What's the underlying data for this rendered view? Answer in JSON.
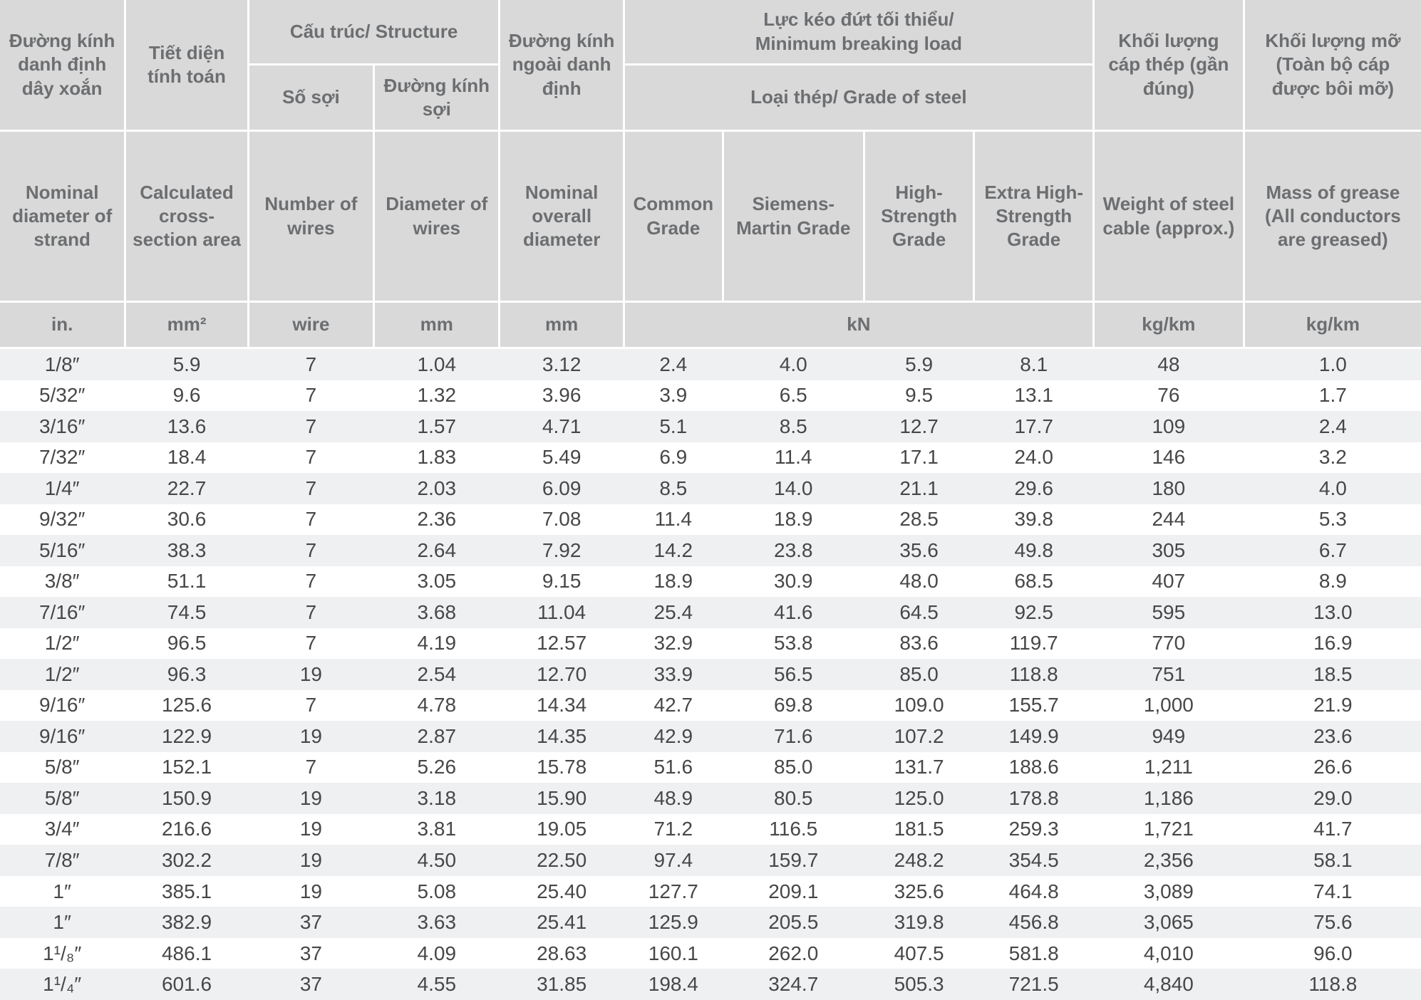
{
  "header": {
    "vi": {
      "col1": "Đường kính danh định dây xoắn",
      "col2": "Tiết diện tính toán",
      "structure": "Cấu trúc/ Structure",
      "so_soi": "Số sợi",
      "duong_kinh_soi": "Đường kính sợi",
      "col5": "Đường kính ngoài danh định",
      "breaking_line1": "Lực kéo đứt tối thiểu/",
      "breaking_line2": "Minimum breaking load",
      "grade": "Loại thép/ Grade of steel",
      "col10": "Khối lượng cáp thép (gần đúng)",
      "col11": "Khối lượng mỡ (Toàn bộ cáp được bôi mỡ)"
    },
    "en": [
      "Nominal diameter of strand",
      "Calculated cross-section area",
      "Number of wires",
      "Diameter of wires",
      "Nominal overall diameter",
      "Common Grade",
      "Siemens-Martin Grade",
      "High-Strength Grade",
      "Extra High-Strength Grade",
      "Weight of steel cable (approx.)",
      "Mass of grease (All conductors are greased)"
    ],
    "units": {
      "col1": "in.",
      "col2": "mm²",
      "col3": "wire",
      "col4": "mm",
      "col5": "mm",
      "kn": "kN",
      "col10": "kg/km",
      "col11": "kg/km"
    }
  },
  "rows": [
    [
      "1/8″",
      "5.9",
      "7",
      "1.04",
      "3.12",
      "2.4",
      "4.0",
      "5.9",
      "8.1",
      "48",
      "1.0"
    ],
    [
      "5/32″",
      "9.6",
      "7",
      "1.32",
      "3.96",
      "3.9",
      "6.5",
      "9.5",
      "13.1",
      "76",
      "1.7"
    ],
    [
      "3/16″",
      "13.6",
      "7",
      "1.57",
      "4.71",
      "5.1",
      "8.5",
      "12.7",
      "17.7",
      "109",
      "2.4"
    ],
    [
      "7/32″",
      "18.4",
      "7",
      "1.83",
      "5.49",
      "6.9",
      "11.4",
      "17.1",
      "24.0",
      "146",
      "3.2"
    ],
    [
      "1/4″",
      "22.7",
      "7",
      "2.03",
      "6.09",
      "8.5",
      "14.0",
      "21.1",
      "29.6",
      "180",
      "4.0"
    ],
    [
      "9/32″",
      "30.6",
      "7",
      "2.36",
      "7.08",
      "11.4",
      "18.9",
      "28.5",
      "39.8",
      "244",
      "5.3"
    ],
    [
      "5/16″",
      "38.3",
      "7",
      "2.64",
      "7.92",
      "14.2",
      "23.8",
      "35.6",
      "49.8",
      "305",
      "6.7"
    ],
    [
      "3/8″",
      "51.1",
      "7",
      "3.05",
      "9.15",
      "18.9",
      "30.9",
      "48.0",
      "68.5",
      "407",
      "8.9"
    ],
    [
      "7/16″",
      "74.5",
      "7",
      "3.68",
      "11.04",
      "25.4",
      "41.6",
      "64.5",
      "92.5",
      "595",
      "13.0"
    ],
    [
      "1/2″",
      "96.5",
      "7",
      "4.19",
      "12.57",
      "32.9",
      "53.8",
      "83.6",
      "119.7",
      "770",
      "16.9"
    ],
    [
      "1/2″",
      "96.3",
      "19",
      "2.54",
      "12.70",
      "33.9",
      "56.5",
      "85.0",
      "118.8",
      "751",
      "18.5"
    ],
    [
      "9/16″",
      "125.6",
      "7",
      "4.78",
      "14.34",
      "42.7",
      "69.8",
      "109.0",
      "155.7",
      "1,000",
      "21.9"
    ],
    [
      "9/16″",
      "122.9",
      "19",
      "2.87",
      "14.35",
      "42.9",
      "71.6",
      "107.2",
      "149.9",
      "949",
      "23.6"
    ],
    [
      "5/8″",
      "152.1",
      "7",
      "5.26",
      "15.78",
      "51.6",
      "85.0",
      "131.7",
      "188.6",
      "1,211",
      "26.6"
    ],
    [
      "5/8″",
      "150.9",
      "19",
      "3.18",
      "15.90",
      "48.9",
      "80.5",
      "125.0",
      "178.8",
      "1,186",
      "29.0"
    ],
    [
      "3/4″",
      "216.6",
      "19",
      "3.81",
      "19.05",
      "71.2",
      "116.5",
      "181.5",
      "259.3",
      "1,721",
      "41.7"
    ],
    [
      "7/8″",
      "302.2",
      "19",
      "4.50",
      "22.50",
      "97.4",
      "159.7",
      "248.2",
      "354.5",
      "2,356",
      "58.1"
    ],
    [
      "1″",
      "385.1",
      "19",
      "5.08",
      "25.40",
      "127.7",
      "209.1",
      "325.6",
      "464.8",
      "3,089",
      "74.1"
    ],
    [
      "1″",
      "382.9",
      "37",
      "3.63",
      "25.41",
      "125.9",
      "205.5",
      "319.8",
      "456.8",
      "3,065",
      "75.6"
    ],
    [
      "1¹/₈″",
      "486.1",
      "37",
      "4.09",
      "28.63",
      "160.1",
      "262.0",
      "407.5",
      "581.8",
      "4,010",
      "96.0"
    ],
    [
      "1¹/₄″",
      "601.6",
      "37",
      "4.55",
      "31.85",
      "198.4",
      "324.7",
      "505.3",
      "721.5",
      "4,840",
      "118.8"
    ]
  ],
  "colors": {
    "header_bg": "#d8d9d8",
    "header_text": "#6d6e71",
    "units_text": "#e23a2d",
    "row_stripe": "#eff0f2",
    "data_text": "#474749"
  }
}
